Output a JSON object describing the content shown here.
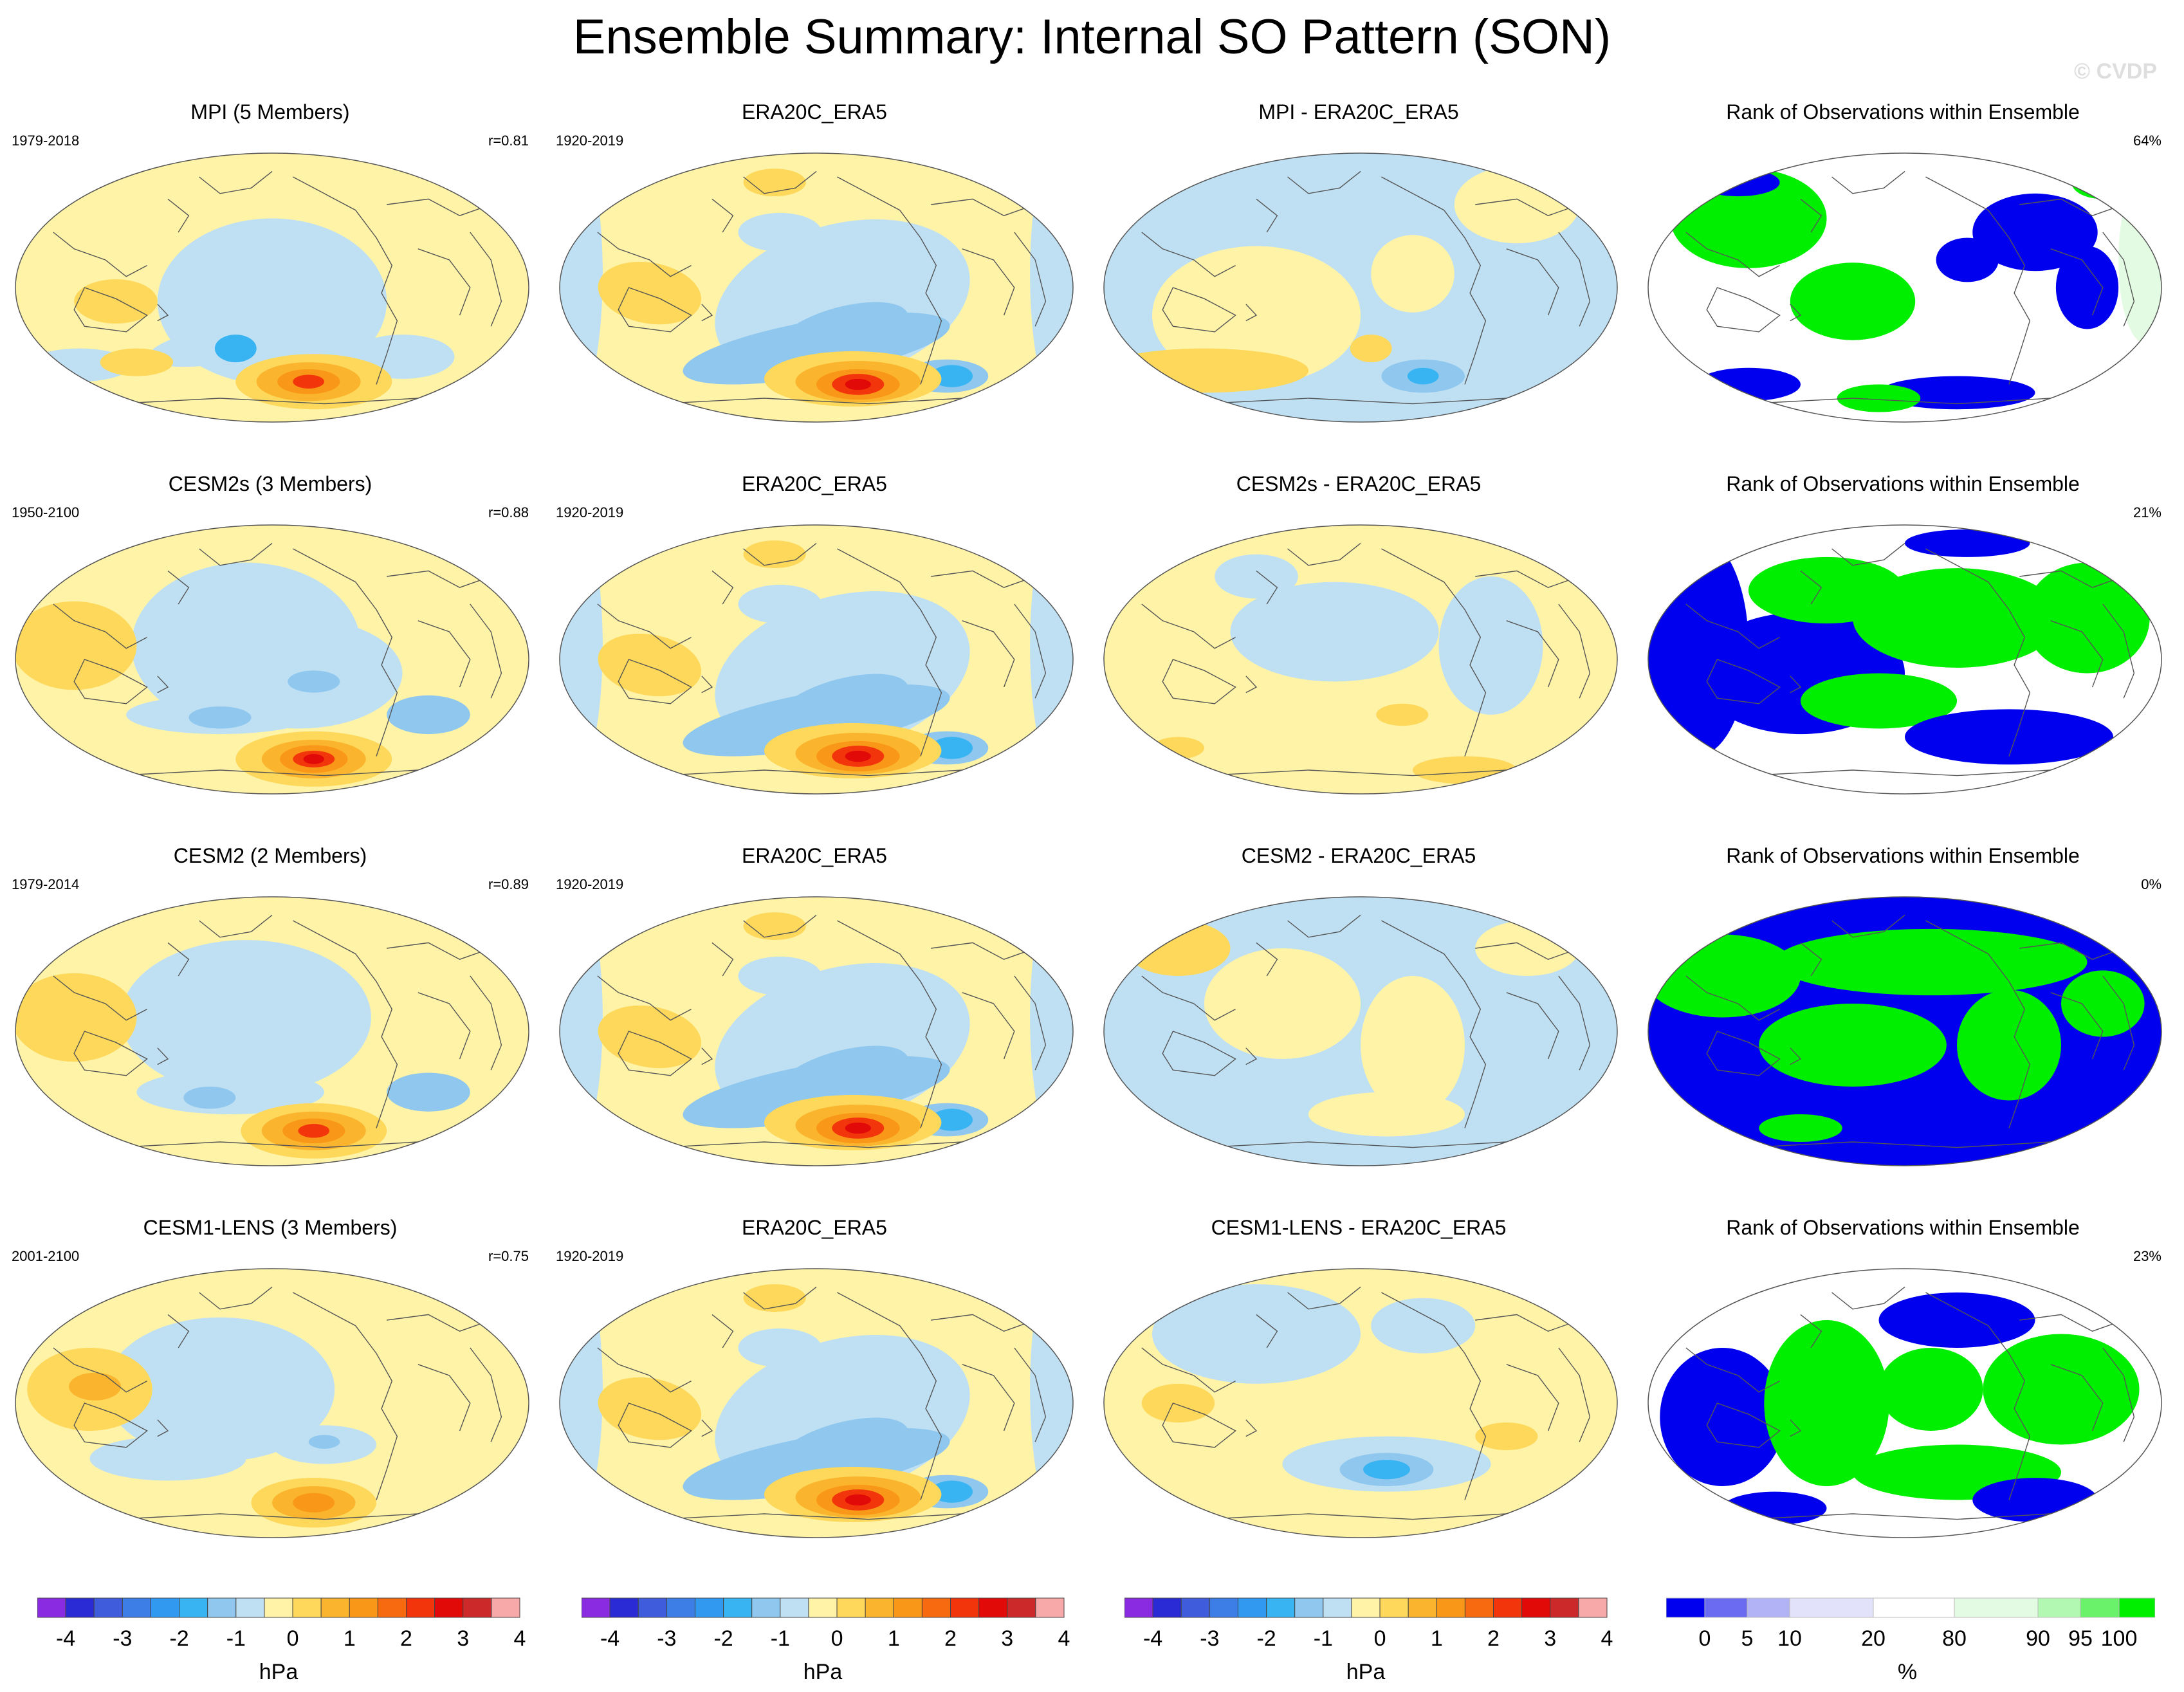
{
  "title": "Ensemble Summary: Internal SO Pattern (SON)",
  "watermark": "© CVDP",
  "map_description": "Each map panel is a global Robinson-type projection of an SLP anomaly pattern, or the percentile rank of observations within the ensemble",
  "colors": {
    "land_outline": "#555555",
    "anomaly_scale": [
      "#8a2be2",
      "#2b2bd6",
      "#3f5cdc",
      "#3c7ee6",
      "#3299f0",
      "#38b4f2",
      "#8fc7ee",
      "#bfe0f3",
      "#fff3a8",
      "#fdd85a",
      "#fbb42e",
      "#f99718",
      "#f76a10",
      "#f2350b",
      "#e20909",
      "#cc2a2a",
      "#f7a8a8"
    ],
    "rank_scale": [
      "#0000ee",
      "#6b6bf2",
      "#b2b2f7",
      "#e2e2fb",
      "#ffffff",
      "#e2fbe2",
      "#b2f7b2",
      "#6bf26b",
      "#00ee00"
    ]
  },
  "rows": [
    {
      "model": {
        "title": "MPI (5 Members)",
        "years": "1979-2018",
        "r": "r=0.81",
        "pattern": "mpi"
      },
      "obs": {
        "title": "ERA20C_ERA5",
        "years": "1920-2019",
        "pattern": "obs"
      },
      "diff": {
        "title": "MPI - ERA20C_ERA5",
        "pattern": "diff1"
      },
      "rank": {
        "title": "Rank of Observations within Ensemble",
        "pct": "64%",
        "pattern": "rank1"
      }
    },
    {
      "model": {
        "title": "CESM2s (3 Members)",
        "years": "1950-2100",
        "r": "r=0.88",
        "pattern": "cesm2s"
      },
      "obs": {
        "title": "ERA20C_ERA5",
        "years": "1920-2019",
        "pattern": "obs"
      },
      "diff": {
        "title": "CESM2s - ERA20C_ERA5",
        "pattern": "diff2"
      },
      "rank": {
        "title": "Rank of Observations within Ensemble",
        "pct": "21%",
        "pattern": "rank2"
      }
    },
    {
      "model": {
        "title": "CESM2 (2 Members)",
        "years": "1979-2014",
        "r": "r=0.89",
        "pattern": "cesm2"
      },
      "obs": {
        "title": "ERA20C_ERA5",
        "years": "1920-2019",
        "pattern": "obs"
      },
      "diff": {
        "title": "CESM2 - ERA20C_ERA5",
        "pattern": "diff3"
      },
      "rank": {
        "title": "Rank of Observations within Ensemble",
        "pct": "0%",
        "pattern": "rank3"
      }
    },
    {
      "model": {
        "title": "CESM1-LENS (3 Members)",
        "years": "2001-2100",
        "r": "r=0.75",
        "pattern": "cesm1"
      },
      "obs": {
        "title": "ERA20C_ERA5",
        "years": "1920-2019",
        "pattern": "obs"
      },
      "diff": {
        "title": "CESM1-LENS - ERA20C_ERA5",
        "pattern": "diff4"
      },
      "rank": {
        "title": "Rank of Observations within Ensemble",
        "pct": "23%",
        "pattern": "rank4"
      }
    }
  ],
  "colorbars": {
    "anomaly": {
      "labels": [
        "-4",
        "-3",
        "-2",
        "-1",
        "0",
        "1",
        "2",
        "3",
        "4"
      ],
      "unit": "hPa"
    },
    "rank": {
      "labels": [
        "0",
        "5",
        "10",
        "20",
        "80",
        "90",
        "95",
        "100"
      ],
      "unit": "%"
    }
  }
}
